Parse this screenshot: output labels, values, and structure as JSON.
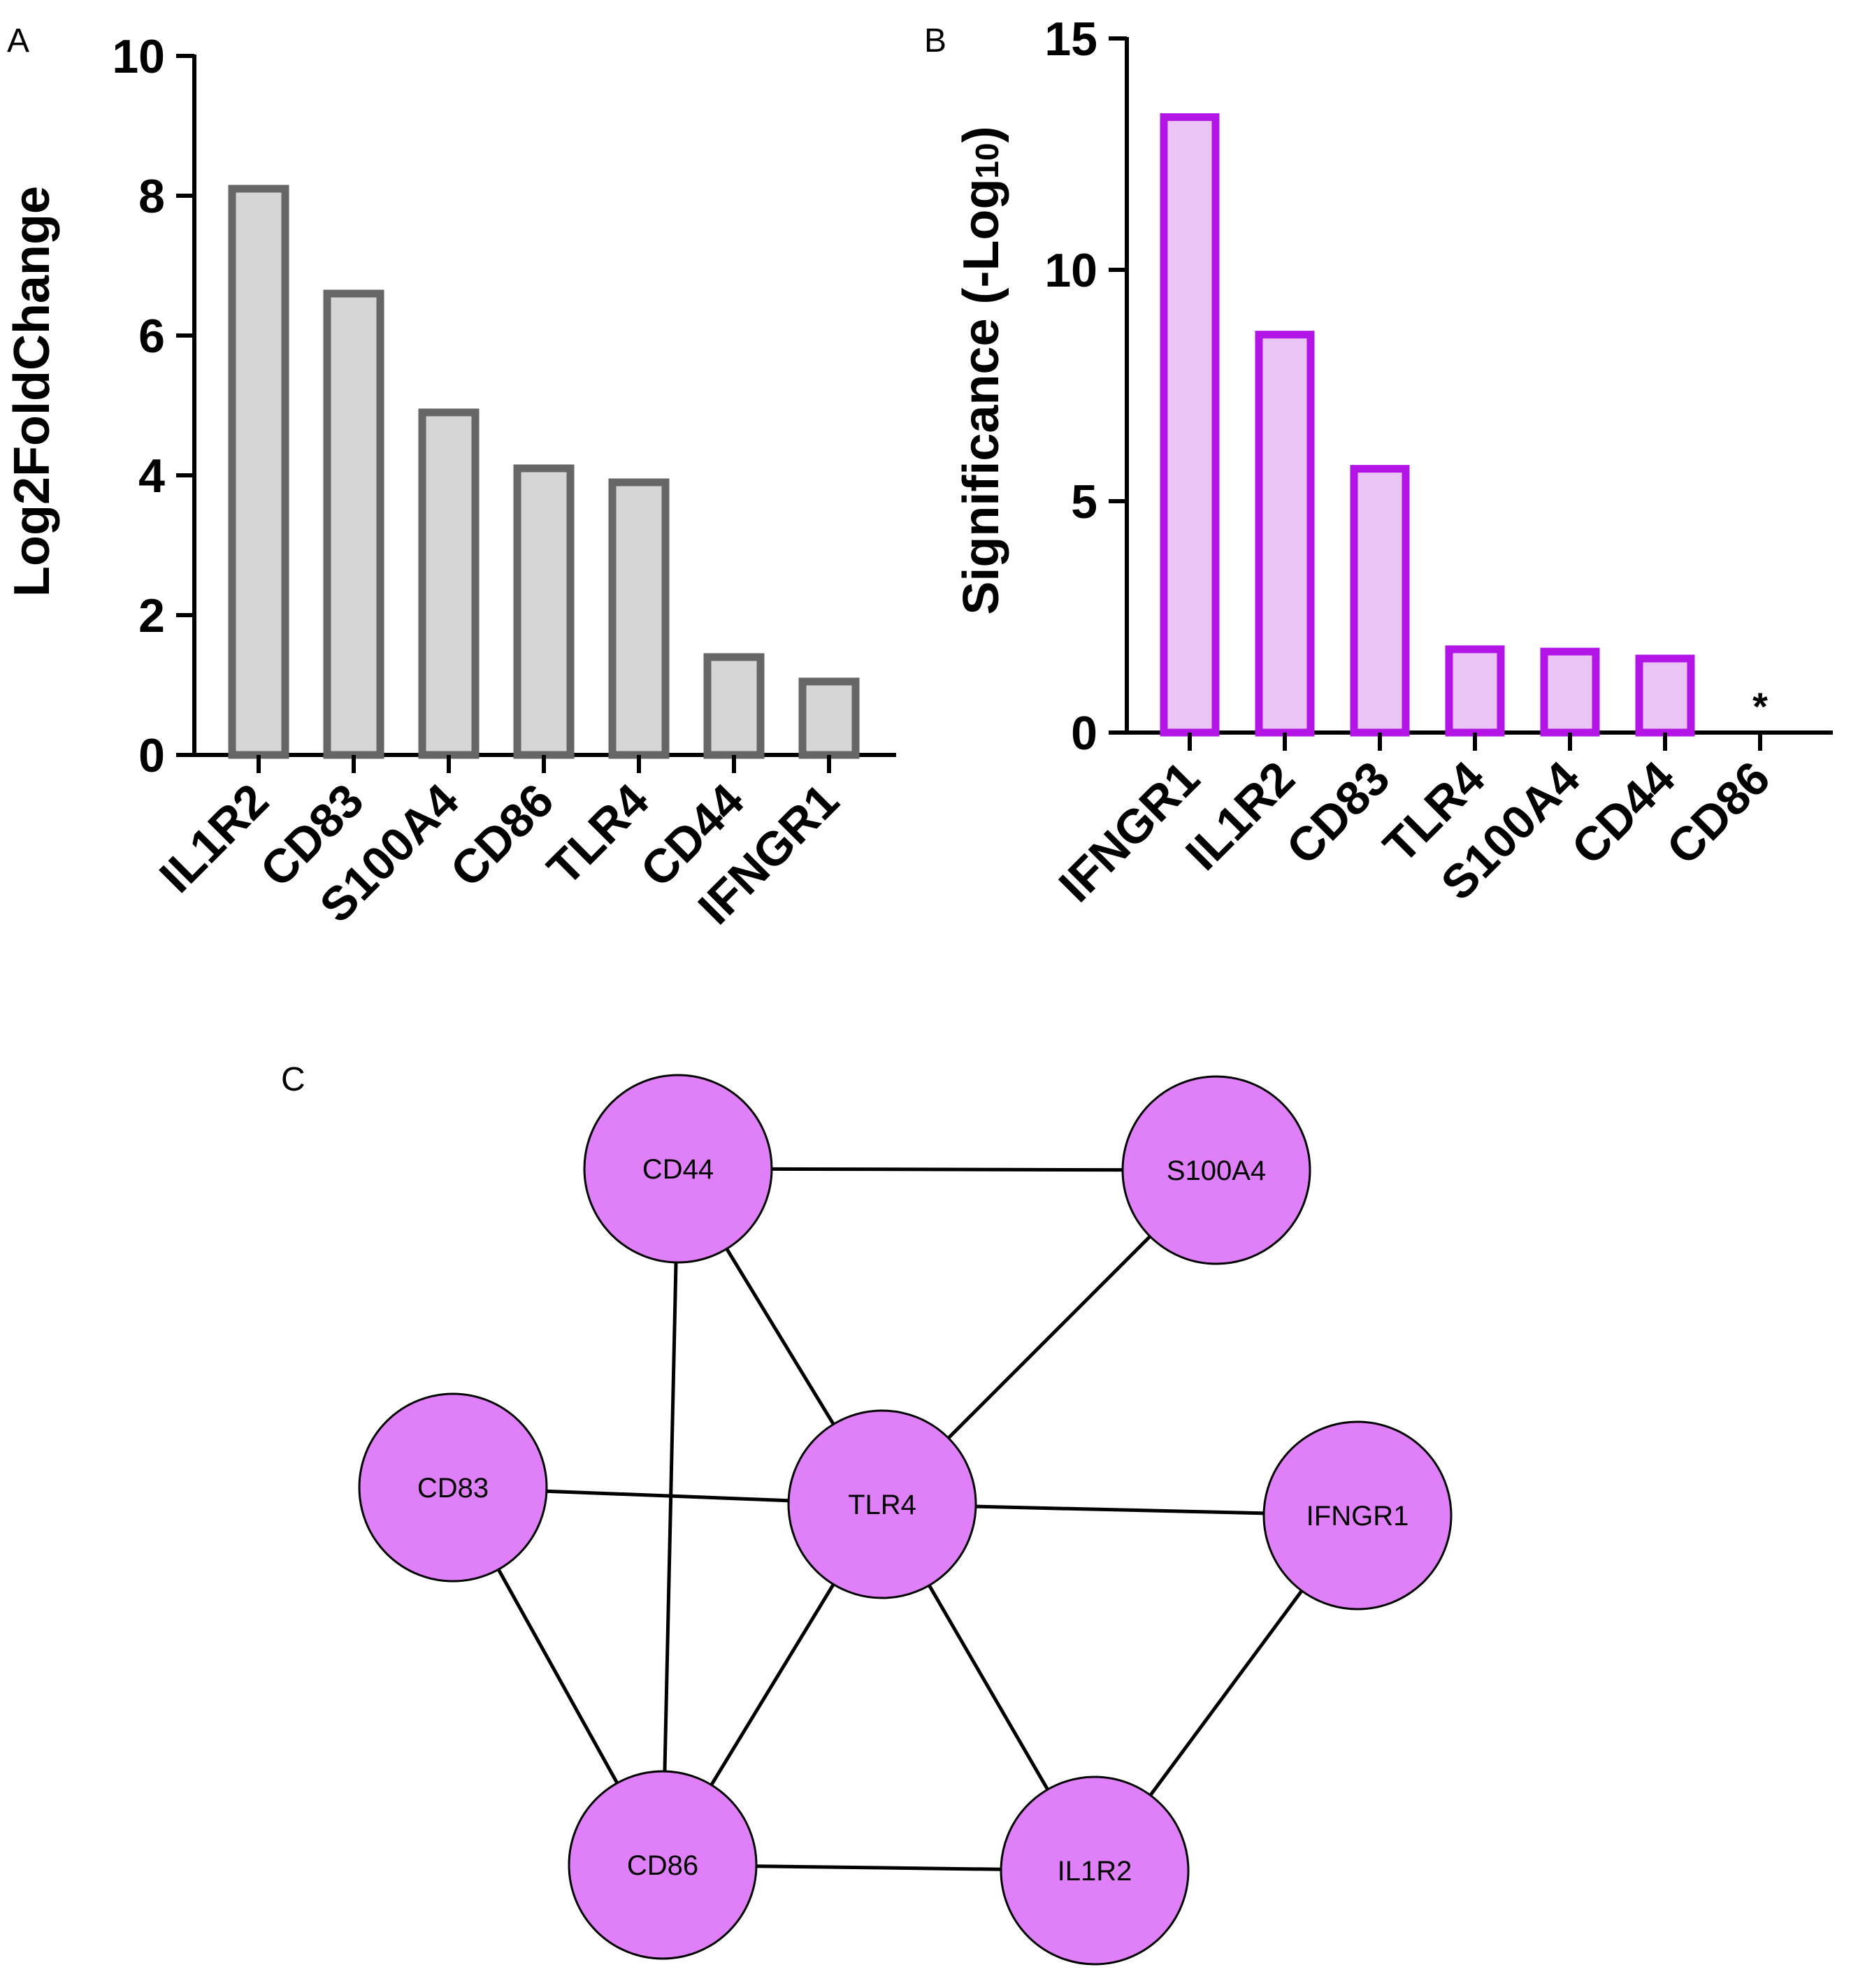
{
  "chart_data": [
    {
      "panel": "A",
      "type": "bar",
      "categories": [
        "IL1R2",
        "CD83",
        "S100A4",
        "CD86",
        "TLR4",
        "CD44",
        "IFNGR1"
      ],
      "values": [
        8.1,
        6.6,
        4.9,
        4.1,
        3.9,
        1.4,
        1.05
      ],
      "ylabel": "Log2FoldChange",
      "ylim": [
        0,
        10
      ],
      "yticks": [
        0,
        2,
        4,
        6,
        8,
        10
      ],
      "colors": {
        "fill": "#d6d6d6",
        "stroke": "#666666"
      }
    },
    {
      "panel": "B",
      "type": "bar",
      "categories": [
        "IFNGR1",
        "IL1R2",
        "CD83",
        "TLR4",
        "S100A4",
        "CD44",
        "CD86"
      ],
      "values": [
        13.3,
        8.6,
        5.7,
        1.8,
        1.75,
        1.6,
        0
      ],
      "ylabel_main": "Significance (-Log",
      "ylabel_sub": "10",
      "ylabel_close": ")",
      "ylim": [
        0,
        15
      ],
      "yticks": [
        0,
        5,
        10,
        15
      ],
      "annotations": [
        {
          "category": "CD86",
          "text": "*"
        }
      ],
      "colors": {
        "fill": "#e9c4f5",
        "stroke": "#b215e6"
      }
    },
    {
      "panel": "C",
      "type": "network",
      "nodes": [
        "CD44",
        "S100A4",
        "CD83",
        "TLR4",
        "IFNGR1",
        "CD86",
        "IL1R2"
      ],
      "edges": [
        [
          "CD44",
          "S100A4"
        ],
        [
          "CD44",
          "TLR4"
        ],
        [
          "CD44",
          "CD86"
        ],
        [
          "S100A4",
          "TLR4"
        ],
        [
          "CD83",
          "TLR4"
        ],
        [
          "CD83",
          "CD86"
        ],
        [
          "TLR4",
          "IFNGR1"
        ],
        [
          "TLR4",
          "CD86"
        ],
        [
          "TLR4",
          "IL1R2"
        ],
        [
          "IFNGR1",
          "IL1R2"
        ],
        [
          "CD86",
          "IL1R2"
        ]
      ],
      "colors": {
        "node_fill": "#df80f8",
        "node_stroke": "#000000",
        "edge": "#000000"
      }
    }
  ]
}
